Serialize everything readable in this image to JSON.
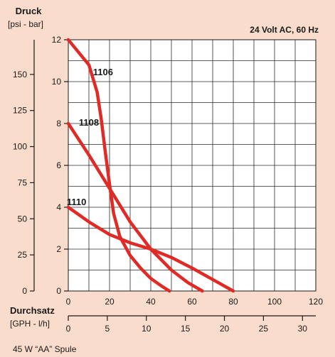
{
  "chart_data": {
    "type": "line",
    "title_y_bold": "Druck",
    "title_y_units": "[psi - bar]",
    "title_x_bold": "Durchsatz",
    "title_x_units": "[GPH - l/h]",
    "condition": "24  Volt AC, 60 Hz",
    "footnote": "45 W “AA”  Spule",
    "bar_axis": {
      "min": 0,
      "max": 12,
      "ticks": [
        "0",
        "2",
        "4",
        "6",
        "8",
        "10",
        "12"
      ]
    },
    "psi_axis": {
      "min": 0,
      "max": 174.0,
      "ticks": [
        "0",
        "25",
        "50",
        "75",
        "100",
        "125",
        "150"
      ],
      "values": [
        0,
        25,
        50,
        75,
        100,
        125,
        150
      ]
    },
    "lh_axis": {
      "min": 0,
      "max": 120,
      "ticks": [
        "0",
        "20",
        "40",
        "60",
        "80",
        "100",
        "120"
      ]
    },
    "gph_axis": {
      "ticks": [
        "0",
        "5",
        "10",
        "15",
        "20",
        "25",
        "30"
      ],
      "values": [
        0,
        5,
        10,
        15,
        20,
        25,
        30
      ]
    },
    "grid": true,
    "line_color": "#e02a26",
    "series": [
      {
        "name": "1106",
        "x": [
          0,
          10,
          14,
          16,
          18,
          20,
          22,
          25,
          30,
          35,
          40,
          45,
          49
        ],
        "y": [
          12,
          10.8,
          9.5,
          8.2,
          6.6,
          5.1,
          3.7,
          2.6,
          1.7,
          1.1,
          0.6,
          0.25,
          0
        ]
      },
      {
        "name": "1108",
        "x": [
          0,
          10,
          20,
          30,
          40,
          50,
          58,
          65
        ],
        "y": [
          8,
          6.5,
          4.9,
          3.3,
          2.0,
          1.0,
          0.4,
          0
        ]
      },
      {
        "name": "1110",
        "x": [
          0,
          10,
          20,
          30,
          40,
          50,
          60,
          70,
          80
        ],
        "y": [
          4,
          3.3,
          2.7,
          2.3,
          2.0,
          1.6,
          1.1,
          0.55,
          0
        ]
      }
    ]
  }
}
